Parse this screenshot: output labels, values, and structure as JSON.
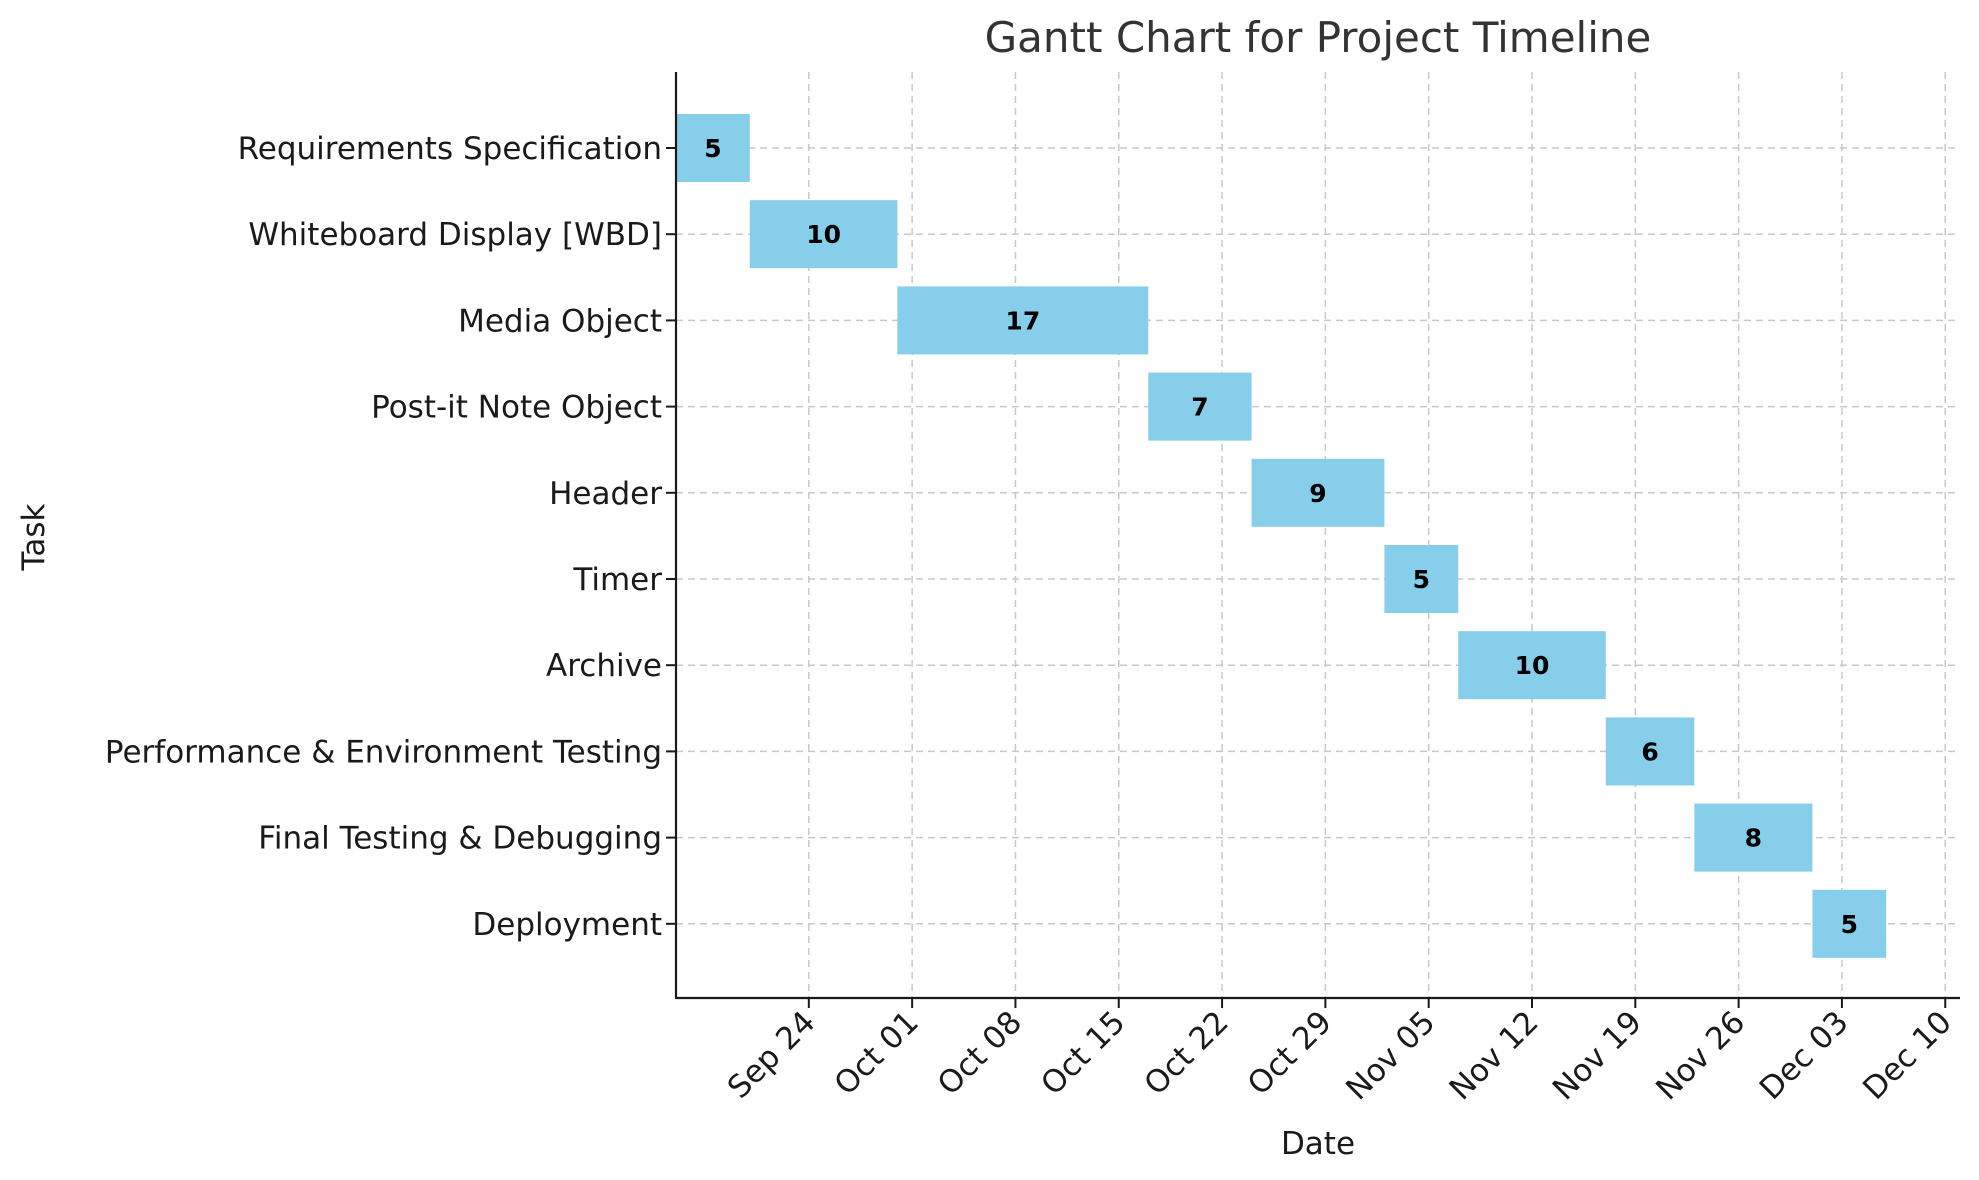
{
  "chart_data": {
    "type": "gantt",
    "title": "Gantt Chart for Project Timeline",
    "xlabel": "Date",
    "ylabel": "Task",
    "x_axis_type": "date",
    "xlim": [
      "2023-09-15",
      "2023-12-11"
    ],
    "xticks": [
      {
        "date": "2023-09-24",
        "label": "Sep 24"
      },
      {
        "date": "2023-10-01",
        "label": "Oct 01"
      },
      {
        "date": "2023-10-08",
        "label": "Oct 08"
      },
      {
        "date": "2023-10-15",
        "label": "Oct 15"
      },
      {
        "date": "2023-10-22",
        "label": "Oct 22"
      },
      {
        "date": "2023-10-29",
        "label": "Oct 29"
      },
      {
        "date": "2023-11-05",
        "label": "Nov 05"
      },
      {
        "date": "2023-11-12",
        "label": "Nov 12"
      },
      {
        "date": "2023-11-19",
        "label": "Nov 19"
      },
      {
        "date": "2023-11-26",
        "label": "Nov 26"
      },
      {
        "date": "2023-12-03",
        "label": "Dec 03"
      },
      {
        "date": "2023-12-10",
        "label": "Dec 10"
      }
    ],
    "tasks": [
      {
        "name": "Requirements Specification",
        "start": "2023-09-15",
        "end": "2023-09-19",
        "duration": 5
      },
      {
        "name": "Whiteboard Display [WBD]",
        "start": "2023-09-20",
        "end": "2023-09-29",
        "duration": 10
      },
      {
        "name": "Media Object",
        "start": "2023-09-30",
        "end": "2023-10-16",
        "duration": 17
      },
      {
        "name": "Post-it Note Object",
        "start": "2023-10-17",
        "end": "2023-10-23",
        "duration": 7
      },
      {
        "name": "Header",
        "start": "2023-10-24",
        "end": "2023-11-01",
        "duration": 9
      },
      {
        "name": "Timer",
        "start": "2023-11-02",
        "end": "2023-11-06",
        "duration": 5
      },
      {
        "name": "Archive",
        "start": "2023-11-07",
        "end": "2023-11-16",
        "duration": 10
      },
      {
        "name": "Performance & Environment Testing",
        "start": "2023-11-17",
        "end": "2023-11-22",
        "duration": 6
      },
      {
        "name": "Final Testing & Debugging",
        "start": "2023-11-23",
        "end": "2023-11-30",
        "duration": 8
      },
      {
        "name": "Deployment",
        "start": "2023-12-01",
        "end": "2023-12-05",
        "duration": 5
      }
    ],
    "bar_color": "#87ceeb",
    "grid": true,
    "grid_style": "dashed"
  }
}
